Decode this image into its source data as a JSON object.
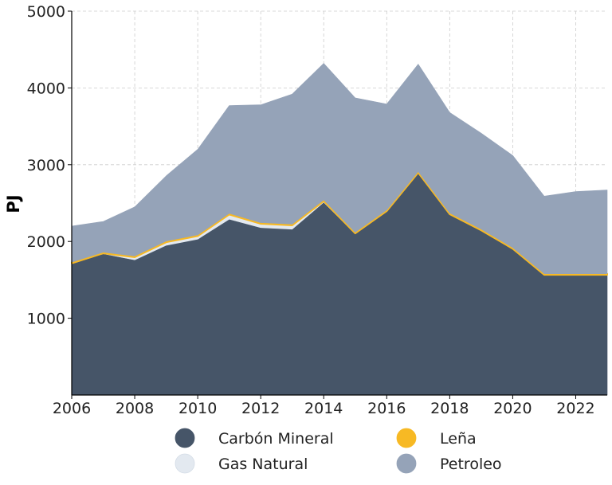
{
  "chart_data": {
    "type": "area",
    "stacked": true,
    "ylabel": "PJ",
    "xlabel": "",
    "title": "",
    "xlim": [
      2006,
      2023
    ],
    "ylim": [
      0,
      5000
    ],
    "x_ticks": [
      2006,
      2008,
      2010,
      2012,
      2014,
      2016,
      2018,
      2020,
      2022
    ],
    "y_ticks": [
      1000,
      2000,
      3000,
      4000,
      5000
    ],
    "grid": true,
    "legend_position": "bottom",
    "x": [
      2006,
      2007,
      2008,
      2009,
      2010,
      2011,
      2012,
      2013,
      2014,
      2015,
      2016,
      2017,
      2018,
      2019,
      2020,
      2021,
      2022,
      2023
    ],
    "series": [
      {
        "name": "Carbón Mineral",
        "color": "#465568",
        "values": [
          1710,
          1840,
          1760,
          1950,
          2030,
          2290,
          2180,
          2160,
          2510,
          2100,
          2390,
          2890,
          2350,
          2140,
          1900,
          1560,
          1560,
          1560
        ]
      },
      {
        "name": "Gas Natural",
        "color": "#e3e9f0",
        "values": [
          5,
          5,
          35,
          40,
          40,
          60,
          50,
          50,
          15,
          5,
          5,
          5,
          5,
          5,
          5,
          5,
          5,
          5
        ]
      },
      {
        "name": "Leña",
        "color": "#f7b924",
        "values": [
          15,
          15,
          15,
          15,
          15,
          15,
          15,
          15,
          15,
          15,
          15,
          15,
          15,
          15,
          15,
          15,
          15,
          15
        ]
      },
      {
        "name": "Petroleo",
        "color": "#95a3b8",
        "values": [
          470,
          400,
          640,
          850,
          1115,
          1405,
          1535,
          1695,
          1780,
          1750,
          1380,
          1400,
          1310,
          1250,
          1200,
          1010,
          1070,
          1090
        ]
      }
    ]
  }
}
